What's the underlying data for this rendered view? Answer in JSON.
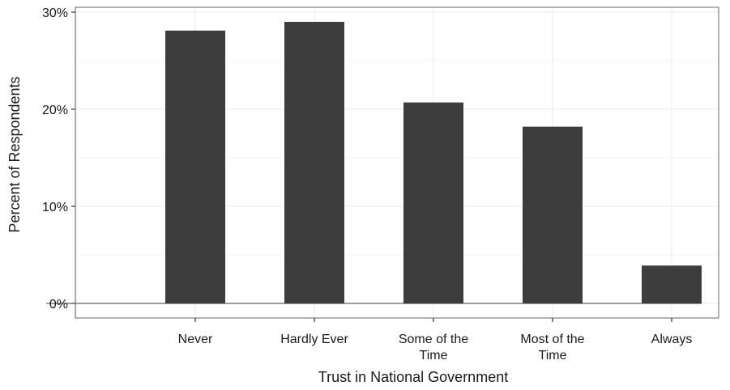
{
  "chart_data": {
    "type": "bar",
    "title": "",
    "xlabel": "Trust in National Government",
    "ylabel": "Percent of Respondents",
    "categories": [
      [
        "Never"
      ],
      [
        "Hardly Ever"
      ],
      [
        "Some of the",
        "Time"
      ],
      [
        "Most of the",
        "Time"
      ],
      [
        "Always"
      ]
    ],
    "category_names": [
      "Never",
      "Hardly Ever",
      "Some of the Time",
      "Most of the Time",
      "Always"
    ],
    "values": [
      28.1,
      29.0,
      20.7,
      18.2,
      3.9
    ],
    "ylim": [
      0,
      30
    ],
    "yticks": [
      0,
      10,
      20,
      30
    ],
    "ytick_labels": [
      "0%",
      "10%",
      "20%",
      "30%"
    ],
    "grid": true,
    "legend": "none",
    "colors": {
      "bar": "#3d3d3d",
      "grid_major": "#ebebeb",
      "grid_minor": "#f5f5f5",
      "panel_border": "#7f7f7f"
    }
  }
}
